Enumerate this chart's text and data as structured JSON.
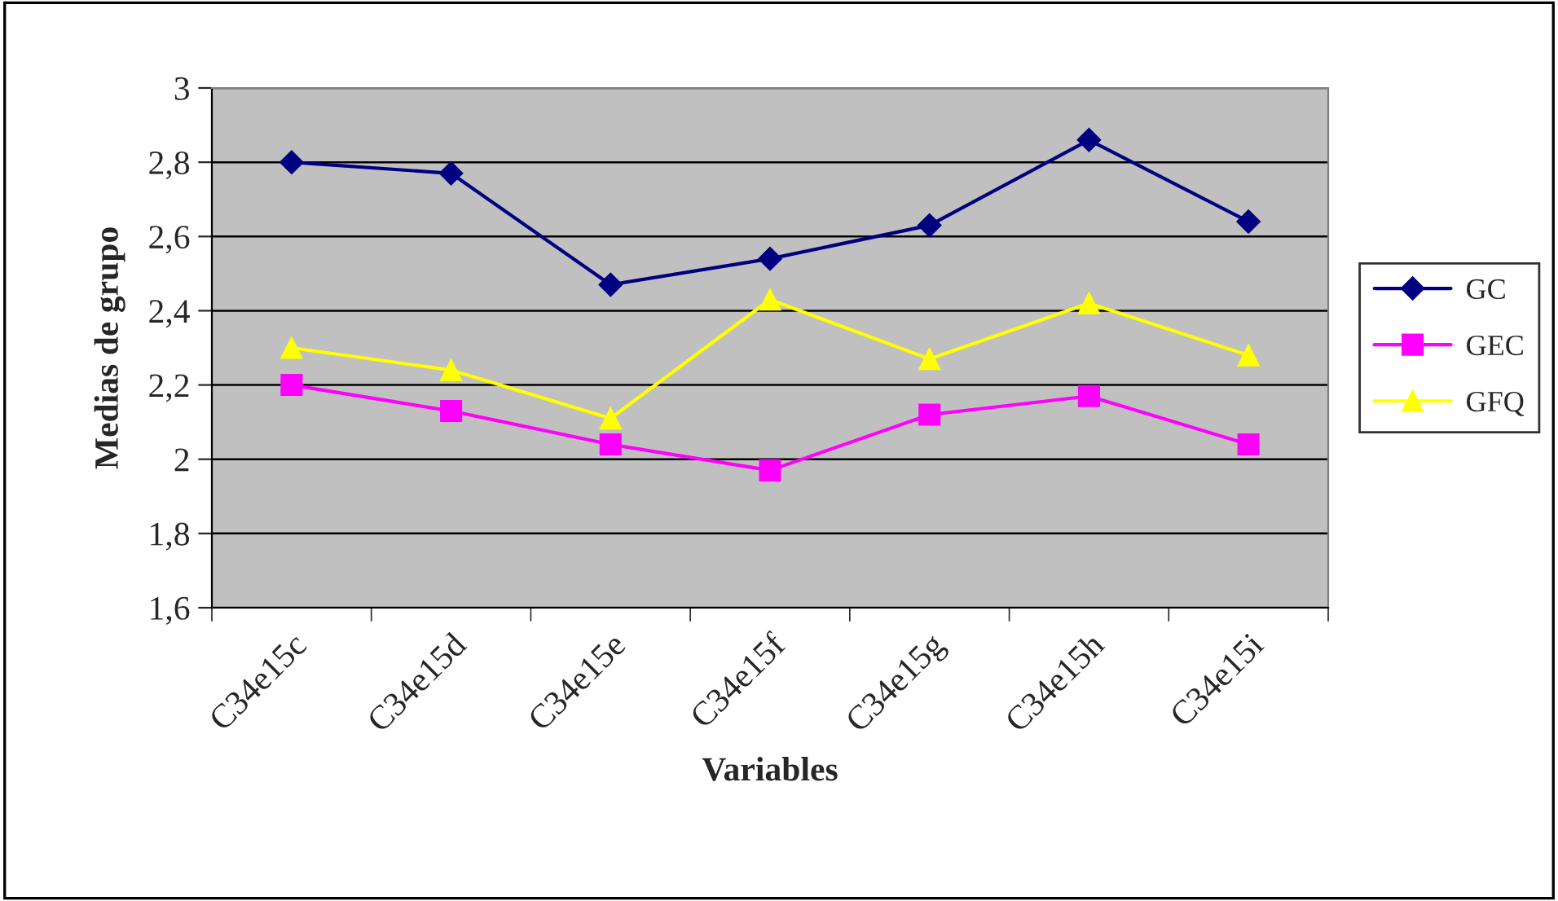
{
  "chart_data": {
    "type": "line",
    "xlabel": "Variables",
    "ylabel": "Medias de grupo",
    "categories": [
      "C34e15c",
      "C34e15d",
      "C34e15e",
      "C34e15f",
      "C34e15g",
      "C34e15h",
      "C34e15i"
    ],
    "series": [
      {
        "name": "GC",
        "color": "#000080",
        "marker": "diamond",
        "values": [
          2.8,
          2.77,
          2.47,
          2.54,
          2.63,
          2.86,
          2.64
        ]
      },
      {
        "name": "GEC",
        "color": "#ff00ff",
        "marker": "square",
        "values": [
          2.2,
          2.13,
          2.04,
          1.97,
          2.12,
          2.17,
          2.04
        ]
      },
      {
        "name": "GFQ",
        "color": "#ffff00",
        "marker": "triangle",
        "values": [
          2.3,
          2.24,
          2.11,
          2.43,
          2.27,
          2.42,
          2.28
        ]
      }
    ],
    "ylim": [
      1.6,
      3
    ],
    "yticks": [
      {
        "value": 1.6,
        "label": "1,6"
      },
      {
        "value": 1.8,
        "label": "1,8"
      },
      {
        "value": 2,
        "label": "2"
      },
      {
        "value": 2.2,
        "label": "2,2"
      },
      {
        "value": 2.4,
        "label": "2,4"
      },
      {
        "value": 2.6,
        "label": "2,6"
      },
      {
        "value": 2.8,
        "label": "2,8"
      },
      {
        "value": 3,
        "label": "3"
      }
    ],
    "grid": "y",
    "legend": "right"
  }
}
